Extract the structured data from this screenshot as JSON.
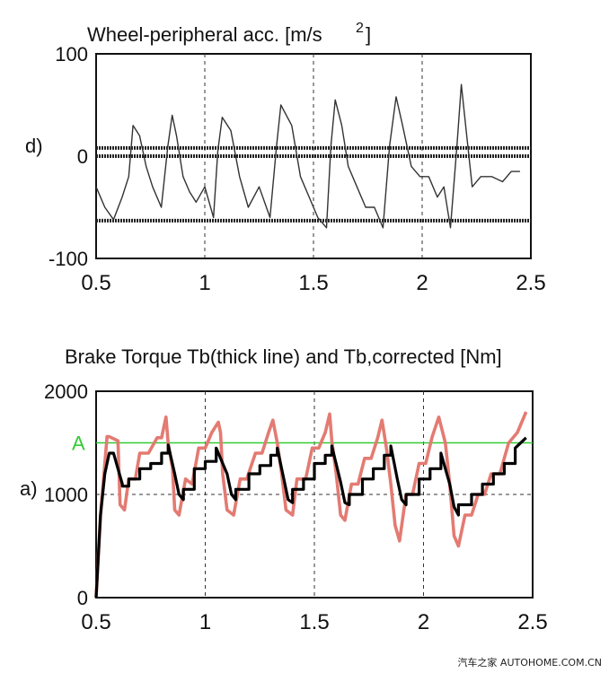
{
  "watermark": "汽车之家 AUTOHOME.COM.CN",
  "chart_data": [
    {
      "type": "line",
      "panel_label": "d)",
      "title": "Wheel-peripheral acc. [m/s",
      "title_superscript": "2",
      "title_suffix": "]",
      "xlim": [
        0.5,
        2.5
      ],
      "ylim": [
        -100,
        100
      ],
      "xticks": [
        "0.5",
        "1",
        "1.5",
        "2",
        "2.5"
      ],
      "yticks": [
        "100",
        "0",
        "-100"
      ],
      "grid": "dashed vertical at 1, 1.5, 2",
      "reference_lines": [
        8,
        0,
        -63
      ],
      "colors": {
        "signal": "#333333",
        "reference": "#222222"
      },
      "series": [
        {
          "x": [
            0.5,
            0.54,
            0.58,
            0.62,
            0.65,
            0.67,
            0.7,
            0.73,
            0.76,
            0.8,
            0.83,
            0.85,
            0.87,
            0.9,
            0.93,
            0.96,
            1.0,
            1.04,
            1.06,
            1.08,
            1.12,
            1.16,
            1.2,
            1.25,
            1.3,
            1.33,
            1.35,
            1.4,
            1.44,
            1.48,
            1.52,
            1.56,
            1.58,
            1.6,
            1.63,
            1.66,
            1.7,
            1.74,
            1.78,
            1.82,
            1.85,
            1.88,
            1.91,
            1.95,
            1.99,
            2.03,
            2.07,
            2.1,
            2.13,
            2.16,
            2.18,
            2.2,
            2.23,
            2.27,
            2.32,
            2.37,
            2.41,
            2.45
          ],
          "y": [
            -30,
            -50,
            -62,
            -40,
            -20,
            30,
            20,
            -10,
            -30,
            -50,
            10,
            40,
            20,
            -20,
            -35,
            -45,
            -30,
            -60,
            5,
            38,
            25,
            -20,
            -50,
            -30,
            -60,
            10,
            50,
            30,
            -20,
            -40,
            -60,
            -70,
            10,
            55,
            30,
            -10,
            -30,
            -50,
            -50,
            -70,
            10,
            58,
            30,
            -10,
            -20,
            -20,
            -40,
            -30,
            -70,
            10,
            70,
            30,
            -30,
            -20,
            -20,
            -25,
            -15,
            -15
          ]
        }
      ]
    },
    {
      "type": "line",
      "panel_label": "a)",
      "title": "Brake Torque Tb(thick line) and Tb,corrected [Nm]",
      "xlim": [
        0.5,
        2.5
      ],
      "ylim": [
        0,
        2000
      ],
      "xticks": [
        "0.5",
        "1",
        "1.5",
        "2",
        "2.5"
      ],
      "yticks": [
        "2000",
        "1000",
        "0"
      ],
      "grid": "dashed at x = 1, 1.5, 2 and y = 1000",
      "reference_lines": [
        {
          "label": "A",
          "y": 1500,
          "color": "#33cc33"
        }
      ],
      "colors": {
        "Tb": "#000000",
        "Tb_corrected": "#e37b72"
      },
      "series": [
        {
          "key": "Tb",
          "x": [
            0.5,
            0.52,
            0.54,
            0.56,
            0.58,
            0.6,
            0.62,
            0.62,
            0.65,
            0.65,
            0.7,
            0.7,
            0.75,
            0.75,
            0.8,
            0.8,
            0.83,
            0.83,
            0.86,
            0.88,
            0.9,
            0.9,
            0.95,
            0.95,
            1.0,
            1.0,
            1.05,
            1.05,
            1.1,
            1.12,
            1.14,
            1.14,
            1.2,
            1.2,
            1.25,
            1.25,
            1.3,
            1.3,
            1.33,
            1.33,
            1.36,
            1.38,
            1.4,
            1.4,
            1.45,
            1.45,
            1.5,
            1.5,
            1.55,
            1.55,
            1.58,
            1.58,
            1.62,
            1.64,
            1.66,
            1.66,
            1.72,
            1.72,
            1.77,
            1.77,
            1.82,
            1.82,
            1.85,
            1.85,
            1.88,
            1.9,
            1.92,
            1.92,
            1.98,
            1.98,
            2.03,
            2.03,
            2.08,
            2.08,
            2.12,
            2.14,
            2.16,
            2.16,
            2.22,
            2.22,
            2.27,
            2.27,
            2.32,
            2.32,
            2.37,
            2.37,
            2.42,
            2.42,
            2.47
          ],
          "y": [
            0,
            800,
            1200,
            1400,
            1400,
            1250,
            1100,
            1080,
            1080,
            1150,
            1150,
            1250,
            1250,
            1300,
            1300,
            1400,
            1400,
            1480,
            1200,
            1000,
            950,
            1050,
            1050,
            1250,
            1250,
            1320,
            1320,
            1450,
            1200,
            1000,
            950,
            1050,
            1050,
            1200,
            1200,
            1280,
            1280,
            1380,
            1380,
            1450,
            1150,
            950,
            920,
            1050,
            1050,
            1150,
            1150,
            1300,
            1300,
            1380,
            1380,
            1470,
            1120,
            920,
            900,
            1000,
            1000,
            1150,
            1150,
            1250,
            1250,
            1380,
            1380,
            1470,
            1150,
            950,
            900,
            1000,
            1000,
            1150,
            1150,
            1250,
            1250,
            1400,
            1100,
            880,
            800,
            900,
            900,
            1000,
            1000,
            1100,
            1100,
            1200,
            1200,
            1300,
            1300,
            1450,
            1550
          ]
        },
        {
          "key": "Tb_corrected",
          "x": [
            0.5,
            0.52,
            0.54,
            0.55,
            0.56,
            0.6,
            0.61,
            0.63,
            0.65,
            0.68,
            0.7,
            0.74,
            0.78,
            0.8,
            0.82,
            0.83,
            0.85,
            0.86,
            0.88,
            0.91,
            0.94,
            0.97,
            1.0,
            1.03,
            1.06,
            1.07,
            1.08,
            1.1,
            1.13,
            1.16,
            1.19,
            1.23,
            1.26,
            1.29,
            1.31,
            1.33,
            1.35,
            1.37,
            1.4,
            1.42,
            1.46,
            1.49,
            1.52,
            1.55,
            1.57,
            1.58,
            1.6,
            1.62,
            1.64,
            1.67,
            1.7,
            1.73,
            1.76,
            1.79,
            1.81,
            1.83,
            1.85,
            1.87,
            1.89,
            1.92,
            1.95,
            1.98,
            2.01,
            2.04,
            2.07,
            2.1,
            2.12,
            2.14,
            2.16,
            2.19,
            2.22,
            2.25,
            2.28,
            2.31,
            2.35,
            2.39,
            2.43,
            2.47
          ],
          "y": [
            0,
            800,
            1300,
            1560,
            1560,
            1520,
            900,
            850,
            1150,
            1150,
            1400,
            1400,
            1550,
            1550,
            1750,
            1500,
            1250,
            850,
            800,
            1150,
            1100,
            1450,
            1450,
            1600,
            1700,
            1600,
            1200,
            850,
            800,
            1150,
            1150,
            1400,
            1400,
            1600,
            1720,
            1500,
            1200,
            850,
            800,
            1150,
            1150,
            1450,
            1450,
            1600,
            1780,
            1520,
            1200,
            800,
            750,
            1100,
            1100,
            1350,
            1350,
            1550,
            1720,
            1450,
            1100,
            700,
            550,
            1000,
            1000,
            1300,
            1300,
            1560,
            1750,
            1500,
            1100,
            600,
            500,
            800,
            800,
            1000,
            1000,
            1200,
            1200,
            1500,
            1600,
            1800
          ]
        }
      ]
    }
  ]
}
